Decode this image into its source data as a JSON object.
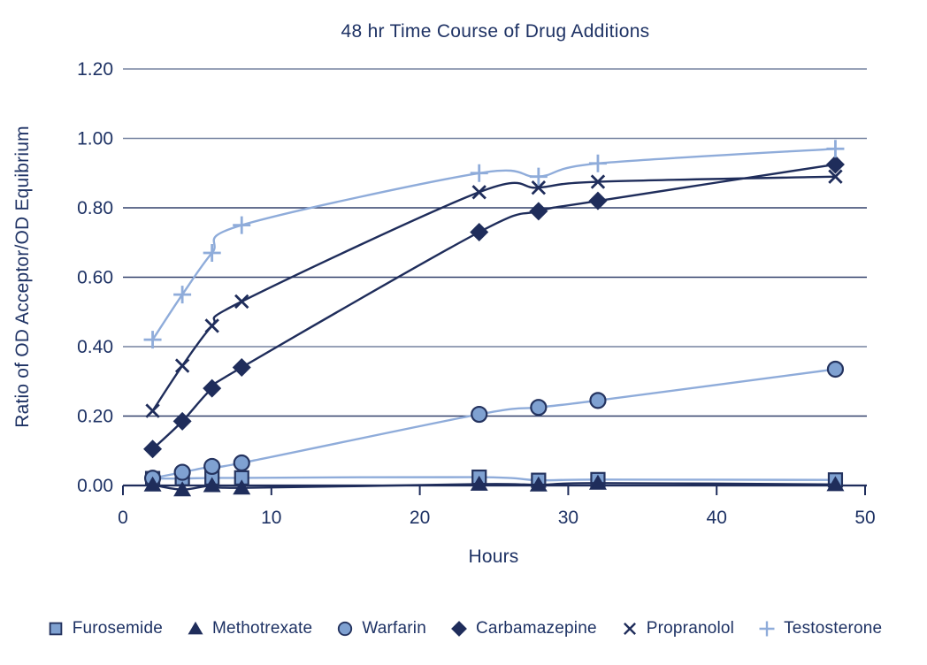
{
  "page": {
    "background": "#FFFFFF"
  },
  "chart_data": {
    "type": "line",
    "title": "48 hr Time Course of Drug Additions",
    "xlabel": "Hours",
    "ylabel": "Ratio of OD Acceptor/OD Equibrium",
    "xlim": [
      0,
      50
    ],
    "ylim": [
      0,
      1.2
    ],
    "grid": "horizontal",
    "legend_position": "bottom",
    "x_tick_values": [
      0,
      10,
      20,
      30,
      40,
      50
    ],
    "x_tick_labels": [
      "0",
      "10",
      "20",
      "30",
      "40",
      "50"
    ],
    "y_tick_values": [
      0,
      0.2,
      0.4,
      0.6,
      0.8,
      1.0,
      1.2
    ],
    "y_tick_labels": [
      "0.00",
      "0.20",
      "0.40",
      "0.60",
      "0.80",
      "1.00",
      "1.20"
    ],
    "x": [
      2,
      4,
      6,
      8,
      24,
      28,
      32,
      48
    ],
    "series": [
      {
        "name": "Furosemide",
        "marker": "square",
        "line_color": "#8FACDA",
        "fill": "#7FA1D1",
        "stroke": "#24335F",
        "values": [
          0.02,
          0.02,
          0.022,
          0.022,
          0.024,
          0.015,
          0.017,
          0.016
        ]
      },
      {
        "name": "Methotrexate",
        "marker": "triangle",
        "line_color": "#1F2D5B",
        "fill": "#1F2D5B",
        "stroke": "#1F2D5B",
        "values": [
          0.002,
          -0.012,
          0.0,
          -0.007,
          0.004,
          0.002,
          0.007,
          0.003
        ]
      },
      {
        "name": "Warfarin",
        "marker": "circle",
        "line_color": "#8FACDA",
        "fill": "#7FA1D1",
        "stroke": "#24335F",
        "values": [
          0.021,
          0.038,
          0.055,
          0.065,
          0.205,
          0.225,
          0.245,
          0.335
        ]
      },
      {
        "name": "Carbamazepine",
        "marker": "diamond",
        "line_color": "#1F2D5B",
        "fill": "#1F2D5B",
        "stroke": "#1F2D5B",
        "values": [
          0.105,
          0.185,
          0.28,
          0.34,
          0.73,
          0.79,
          0.82,
          0.925
        ]
      },
      {
        "name": "Propranolol",
        "marker": "x",
        "line_color": "#1F2D5B",
        "fill": "#1F2D5B",
        "stroke": "#1F2D5B",
        "values": [
          0.215,
          0.345,
          0.46,
          0.53,
          0.845,
          0.858,
          0.875,
          0.89
        ]
      },
      {
        "name": "Testosterone",
        "marker": "plus",
        "line_color": "#8FACDA",
        "fill": "#8FACDA",
        "stroke": "#8FACDA",
        "values": [
          0.42,
          0.55,
          0.67,
          0.75,
          0.9,
          0.89,
          0.928,
          0.97
        ]
      }
    ],
    "colors": {
      "text": "#1E3264",
      "dark_series": "#1F2D5B",
      "light_series": "#8FACDA",
      "light_marker_fill": "#7FA1D1",
      "grid_light": "#75829F",
      "grid_dark": "#32406B",
      "axis": "#1F2D5B"
    }
  }
}
